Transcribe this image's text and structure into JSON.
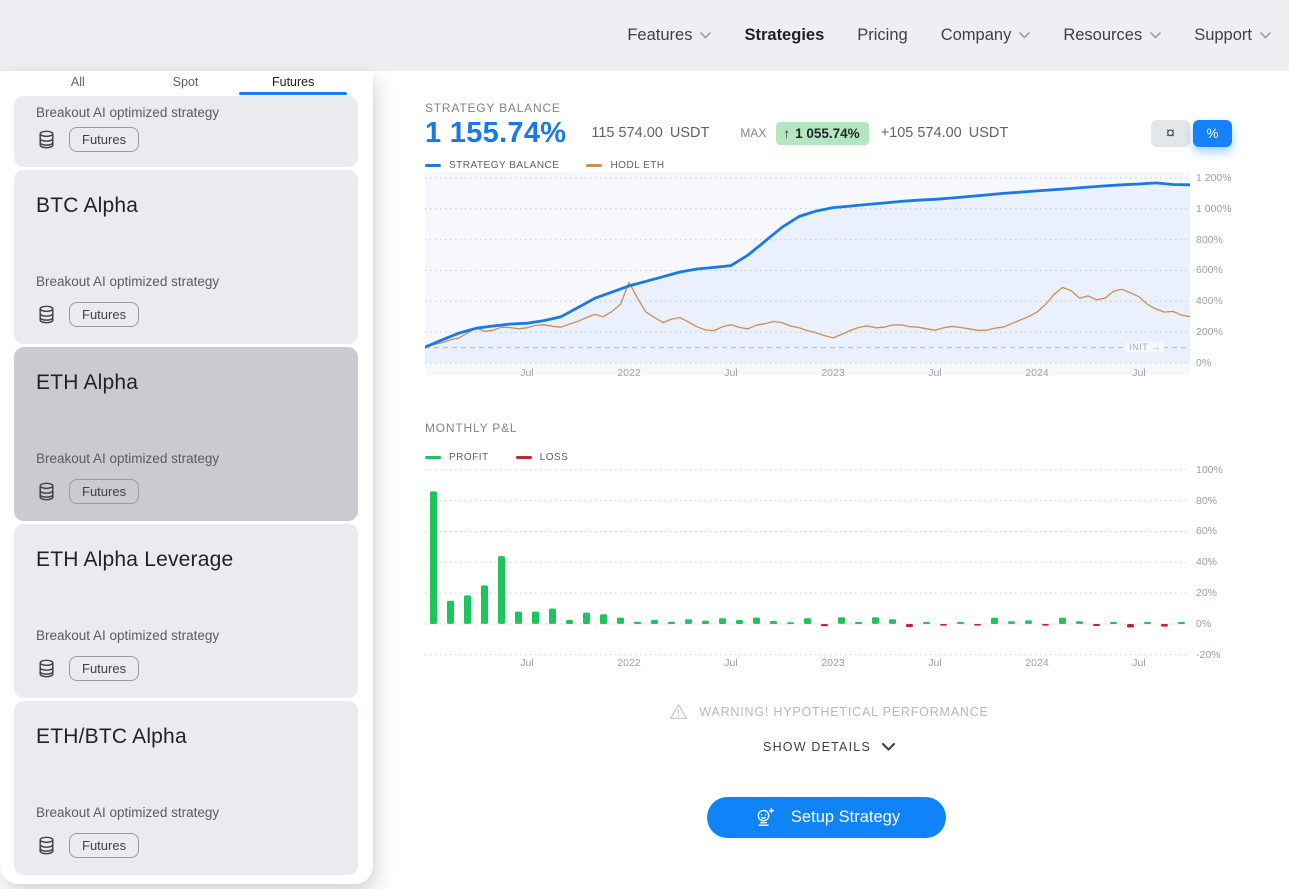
{
  "nav": {
    "items": [
      {
        "label": "Features"
      },
      {
        "label": "Strategies",
        "active": true
      },
      {
        "label": "Pricing"
      },
      {
        "label": "Company"
      },
      {
        "label": "Resources"
      },
      {
        "label": "Support"
      }
    ]
  },
  "sidebar": {
    "tabs": [
      {
        "label": "All"
      },
      {
        "label": "Spot"
      },
      {
        "label": "Futures",
        "active": true
      }
    ],
    "cards": [
      {
        "title": "",
        "subtitle": "Breakout AI optimized strategy",
        "badge": "Futures",
        "partial": true
      },
      {
        "title": "BTC Alpha",
        "subtitle": "Breakout AI optimized strategy",
        "badge": "Futures"
      },
      {
        "title": "ETH Alpha",
        "subtitle": "Breakout AI optimized strategy",
        "badge": "Futures",
        "selected": true
      },
      {
        "title": "ETH Alpha Leverage",
        "subtitle": "Breakout AI optimized strategy",
        "badge": "Futures"
      },
      {
        "title": "ETH/BTC Alpha",
        "subtitle": "Breakout AI optimized strategy",
        "badge": "Futures"
      }
    ]
  },
  "balance": {
    "section_label": "STRATEGY BALANCE",
    "percent": "1 155.74%",
    "amount": "115 574.00",
    "amount_currency": "USDT",
    "max_label": "MAX",
    "max_arrow": "↑",
    "max_percent": "1 055.74%",
    "max_amount": "+105 574.00",
    "max_currency": "USDT"
  },
  "toggle": {
    "currency_symbol": "¤",
    "percent_symbol": "%"
  },
  "monthly": {
    "section_label": "MONTHLY P&L"
  },
  "footer": {
    "warning": "WARNING! HYPOTHETICAL PERFORMANCE",
    "show_details": "SHOW DETAILS",
    "setup_button": "Setup Strategy"
  },
  "colors": {
    "accent_blue": "#1681f8",
    "line_blue": "#1a79e8",
    "line_orange": "#d08c51",
    "profit_green": "#1ec45c",
    "loss_red": "#c22532",
    "plot_bg": "#f6f8fd"
  },
  "chart_data": [
    {
      "type": "line",
      "title": "STRATEGY BALANCE",
      "plot_bg": "#f6f8fd",
      "legend": [
        {
          "name": "STRATEGY BALANCE",
          "color": "#1a79e8"
        },
        {
          "name": "HODL ETH",
          "color": "#d08c51"
        }
      ],
      "x_tick_labels": [
        "Jul",
        "2022",
        "Jul",
        "2023",
        "Jul",
        "2024",
        "Jul"
      ],
      "x_tick_months": [
        6,
        12,
        18,
        24,
        30,
        36,
        42
      ],
      "x_range_months": [
        0,
        45
      ],
      "y_ticks": [
        "1 200%",
        "1 000%",
        "800%",
        "600%",
        "400%",
        "200%",
        "0%"
      ],
      "y_tick_values": [
        1200,
        1000,
        800,
        600,
        400,
        200,
        0
      ],
      "init_line": {
        "value": 100,
        "label": "INIT →"
      },
      "series": [
        {
          "name": "STRATEGY BALANCE",
          "color": "#1a79e8",
          "months_per_point": 1,
          "values": [
            103,
            150,
            194,
            225,
            240,
            252,
            258,
            275,
            300,
            360,
            420,
            460,
            500,
            530,
            560,
            590,
            610,
            620,
            632,
            700,
            790,
            880,
            950,
            985,
            1008,
            1018,
            1028,
            1038,
            1048,
            1056,
            1062,
            1070,
            1080,
            1090,
            1100,
            1108,
            1116,
            1124,
            1132,
            1141,
            1149,
            1156,
            1161,
            1168,
            1158,
            1156
          ]
        },
        {
          "name": "HODL ETH",
          "color": "#d08c51",
          "months_per_point": 0.5,
          "values": [
            105,
            118,
            132,
            150,
            162,
            195,
            228,
            205,
            212,
            232,
            230,
            222,
            228,
            244,
            248,
            238,
            232,
            252,
            270,
            295,
            315,
            300,
            335,
            380,
            523,
            420,
            330,
            295,
            262,
            285,
            295,
            265,
            235,
            215,
            210,
            235,
            248,
            230,
            222,
            245,
            255,
            270,
            262,
            240,
            228,
            210,
            196,
            178,
            163,
            185,
            210,
            230,
            242,
            228,
            232,
            246,
            248,
            236,
            232,
            222,
            212,
            228,
            238,
            230,
            222,
            212,
            212,
            226,
            232,
            255,
            278,
            300,
            330,
            380,
            445,
            490,
            470,
            420,
            435,
            410,
            420,
            465,
            478,
            455,
            430,
            380,
            350,
            330,
            335,
            310,
            300
          ]
        }
      ]
    },
    {
      "type": "bar",
      "title": "MONTHLY P&L",
      "legend": [
        {
          "name": "PROFIT",
          "color": "#1ec45c"
        },
        {
          "name": "LOSS",
          "color": "#c22532"
        }
      ],
      "x_tick_labels": [
        "Jul",
        "2022",
        "Jul",
        "2023",
        "Jul",
        "2024",
        "Jul"
      ],
      "x_tick_months": [
        6,
        12,
        18,
        24,
        30,
        36,
        42
      ],
      "x_range_months": [
        0,
        45
      ],
      "y_ticks": [
        "100%",
        "80%",
        "60%",
        "40%",
        "20%",
        "0%",
        "-20%"
      ],
      "y_tick_values": [
        100,
        80,
        60,
        40,
        20,
        0,
        -20
      ],
      "values": [
        86,
        15,
        18.5,
        25,
        44,
        8,
        8,
        10,
        2.6,
        7.4,
        6.3,
        4.1,
        1.5,
        2.6,
        1.5,
        3,
        2.2,
        3.7,
        2.6,
        4.1,
        2,
        1.1,
        3.7,
        -1.5,
        4.3,
        1.3,
        4.3,
        3,
        -2,
        1.3,
        -0.7,
        1.3,
        -1,
        4,
        1.7,
        2.3,
        -1,
        4,
        1.7,
        -1.3,
        1.3,
        -2.3,
        1.3,
        -1.7,
        1.3
      ]
    }
  ]
}
